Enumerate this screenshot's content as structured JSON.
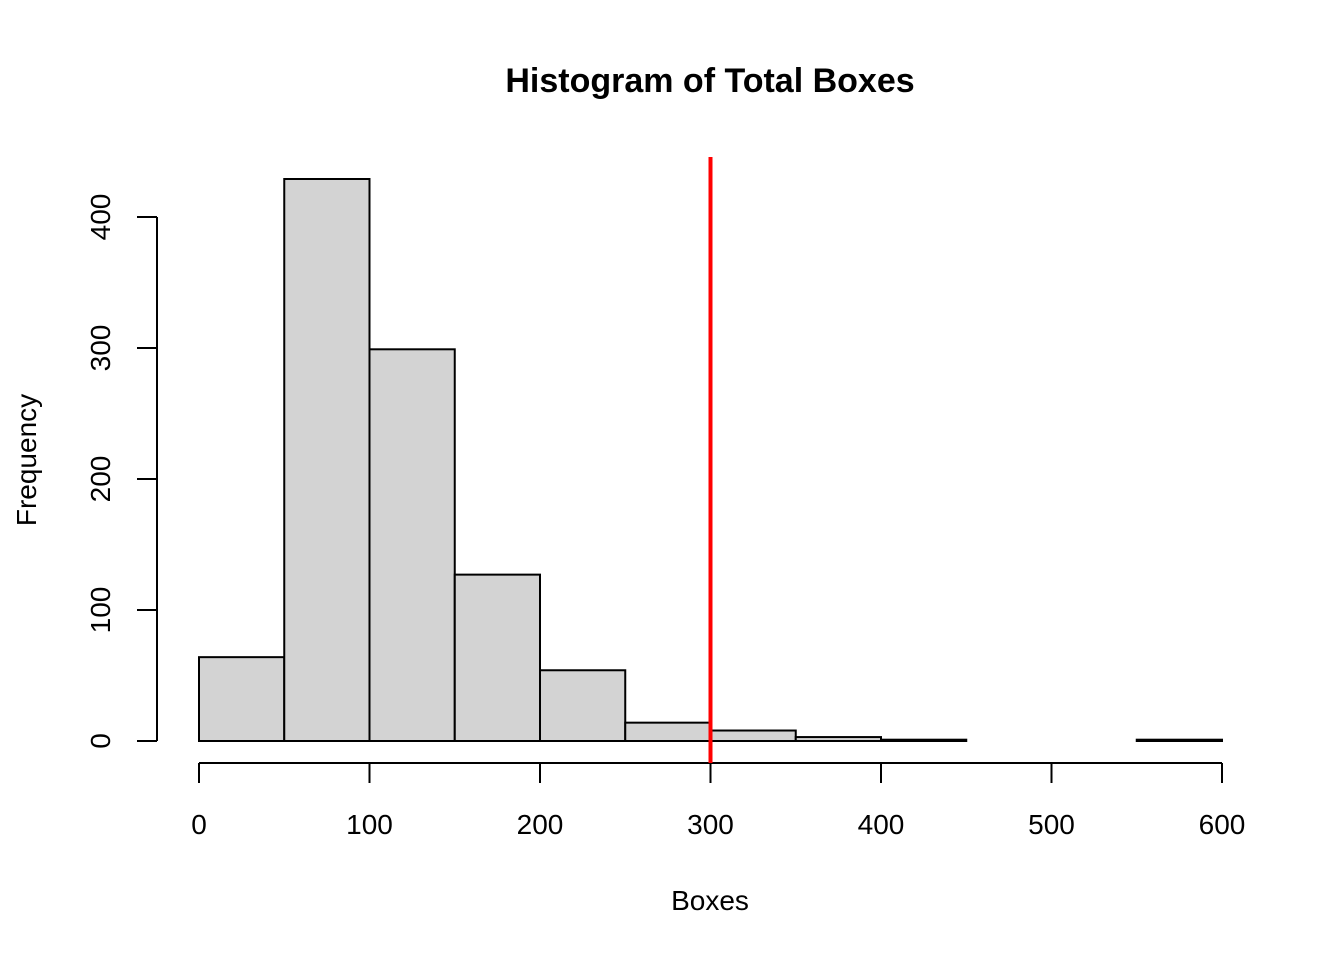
{
  "chart_data": {
    "type": "histogram",
    "title": "Histogram of Total Boxes",
    "xlabel": "Boxes",
    "ylabel": "Frequency",
    "bin_edges": [
      0,
      50,
      100,
      150,
      200,
      250,
      300,
      350,
      400,
      450,
      500,
      550,
      600
    ],
    "counts": [
      64,
      429,
      299,
      127,
      54,
      14,
      8,
      3,
      1,
      0,
      0,
      1
    ],
    "xlim": [
      0,
      600
    ],
    "ylim": [
      0,
      429
    ],
    "x_ticks": [
      0,
      100,
      200,
      300,
      400,
      500,
      600
    ],
    "y_ticks": [
      0,
      100,
      200,
      300,
      400
    ],
    "reference_line": {
      "x": 300,
      "color": "#ff0000"
    },
    "bar_color": "#d3d3d3",
    "grid": false
  }
}
